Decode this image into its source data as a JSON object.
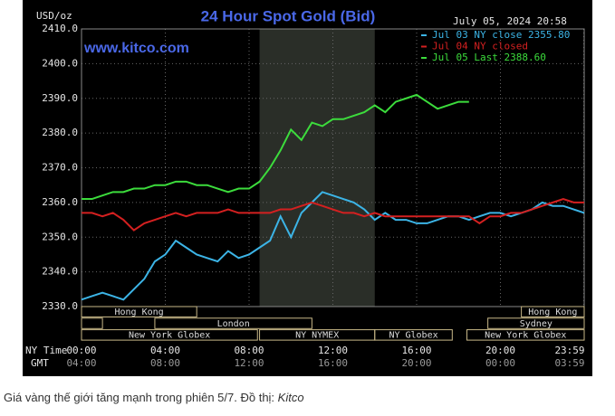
{
  "chart_data": {
    "type": "line",
    "title": "24 Hour Spot Gold (Bid)",
    "y_unit": "USD/oz",
    "timestamp": "July 05, 2024 20:58",
    "watermark": "www.kitco.com",
    "x_axis_labels": [
      "NY Time",
      "GMT"
    ],
    "x": [
      0,
      0.5,
      1,
      1.5,
      2,
      2.5,
      3,
      3.5,
      4,
      4.5,
      5,
      5.5,
      6,
      6.5,
      7,
      7.5,
      8,
      8.5,
      9,
      9.5,
      10,
      10.5,
      11,
      11.5,
      12,
      12.5,
      13,
      13.5,
      14,
      14.5,
      15,
      15.5,
      16,
      16.5,
      17,
      17.5,
      18,
      18.5,
      19,
      19.5,
      20,
      20.5,
      21,
      21.5,
      22,
      22.5,
      23,
      23.5,
      24
    ],
    "series": [
      {
        "name": "Jul 03 NY close 2355.80",
        "color": "#3cb4e6",
        "values": [
          2332,
          2333,
          2334,
          2333,
          2332,
          2335,
          2338,
          2343,
          2345,
          2349,
          2347,
          2345,
          2344,
          2343,
          2346,
          2344,
          2345,
          2347,
          2349,
          2356,
          2350,
          2357,
          2360,
          2363,
          2362,
          2361,
          2360,
          2358,
          2355,
          2357,
          2355,
          2355,
          2354,
          2354,
          2355,
          2356,
          2356,
          2355,
          2356,
          2357,
          2357,
          2356,
          2357,
          2358,
          2360,
          2359,
          2359,
          2358,
          2357
        ]
      },
      {
        "name": "Jul 04 NY closed",
        "color": "#d42020",
        "values": [
          2357,
          2357,
          2356,
          2357,
          2355,
          2352,
          2354,
          2355,
          2356,
          2357,
          2356,
          2357,
          2357,
          2357,
          2358,
          2357,
          2357,
          2357,
          2357,
          2358,
          2358,
          2359,
          2360,
          2359,
          2358,
          2357,
          2357,
          2356,
          2357,
          2356,
          2356,
          2356,
          2356,
          2356,
          2356,
          2356,
          2356,
          2356,
          2354,
          2356,
          2356,
          2357,
          2357,
          2358,
          2359,
          2360,
          2361,
          2360,
          2360
        ]
      },
      {
        "name": "Jul 05 Last 2388.60",
        "color": "#3cdc3c",
        "values": [
          2361,
          2361,
          2362,
          2363,
          2363,
          2364,
          2364,
          2365,
          2365,
          2366,
          2366,
          2365,
          2365,
          2364,
          2363,
          2364,
          2364,
          2366,
          2370,
          2375,
          2381,
          2378,
          2383,
          2382,
          2384,
          2384,
          2385,
          2386,
          2388,
          2386,
          2389,
          2390,
          2391,
          2389,
          2387,
          2388,
          2389,
          2389,
          null,
          null,
          null,
          null,
          null,
          null,
          null,
          null,
          null,
          null,
          null
        ]
      }
    ],
    "xlim": [
      0,
      24
    ],
    "xticks": [
      {
        "value": 0,
        "label": "00:00"
      },
      {
        "value": 4,
        "label": "04:00"
      },
      {
        "value": 8,
        "label": "08:00"
      },
      {
        "value": 12,
        "label": "12:00"
      },
      {
        "value": 16,
        "label": "16:00"
      },
      {
        "value": 20,
        "label": "20:00"
      },
      {
        "value": 23.98,
        "label": "23:59"
      }
    ],
    "gmt_labels": [
      "04:00",
      "08:00",
      "12:00",
      "16:00",
      "20:00",
      "00:00",
      "03:59"
    ],
    "ylim": [
      2330,
      2410
    ],
    "yticks": [
      {
        "value": 2330,
        "label": "2330.0"
      },
      {
        "value": 2340,
        "label": "2340.0"
      },
      {
        "value": 2350,
        "label": "2350.0"
      },
      {
        "value": 2360,
        "label": "2360.0"
      },
      {
        "value": 2370,
        "label": "2370.0"
      },
      {
        "value": 2380,
        "label": "2380.0"
      },
      {
        "value": 2390,
        "label": "2390.0"
      },
      {
        "value": 2400,
        "label": "2400.0"
      },
      {
        "value": 2410,
        "label": "2410.0"
      }
    ],
    "grid": true,
    "shaded": [
      8.5,
      14
    ],
    "session_rows": [
      [
        {
          "label": "Hong Kong",
          "start": 0,
          "end": 5.5
        },
        {
          "label": "Hong Kong",
          "start": 21,
          "end": 24
        }
      ],
      [
        {
          "label": null,
          "start": 0,
          "end": 1
        },
        {
          "label": "London",
          "start": 3.5,
          "end": 11
        },
        {
          "label": "Sydney",
          "start": 19.4,
          "end": 24
        }
      ],
      [
        {
          "label": "New York Globex",
          "start": 0,
          "end": 8.4
        },
        {
          "label": "NY NYMEX",
          "start": 8.5,
          "end": 14
        },
        {
          "label": "NY Globex",
          "start": 14,
          "end": 17.7
        },
        {
          "label": "New York Globex",
          "start": 18.4,
          "end": 24
        }
      ]
    ]
  },
  "caption": {
    "text": "Giá vàng thế giới tăng mạnh trong phiên 5/7. Đồ thị: ",
    "source": "Kitco"
  }
}
